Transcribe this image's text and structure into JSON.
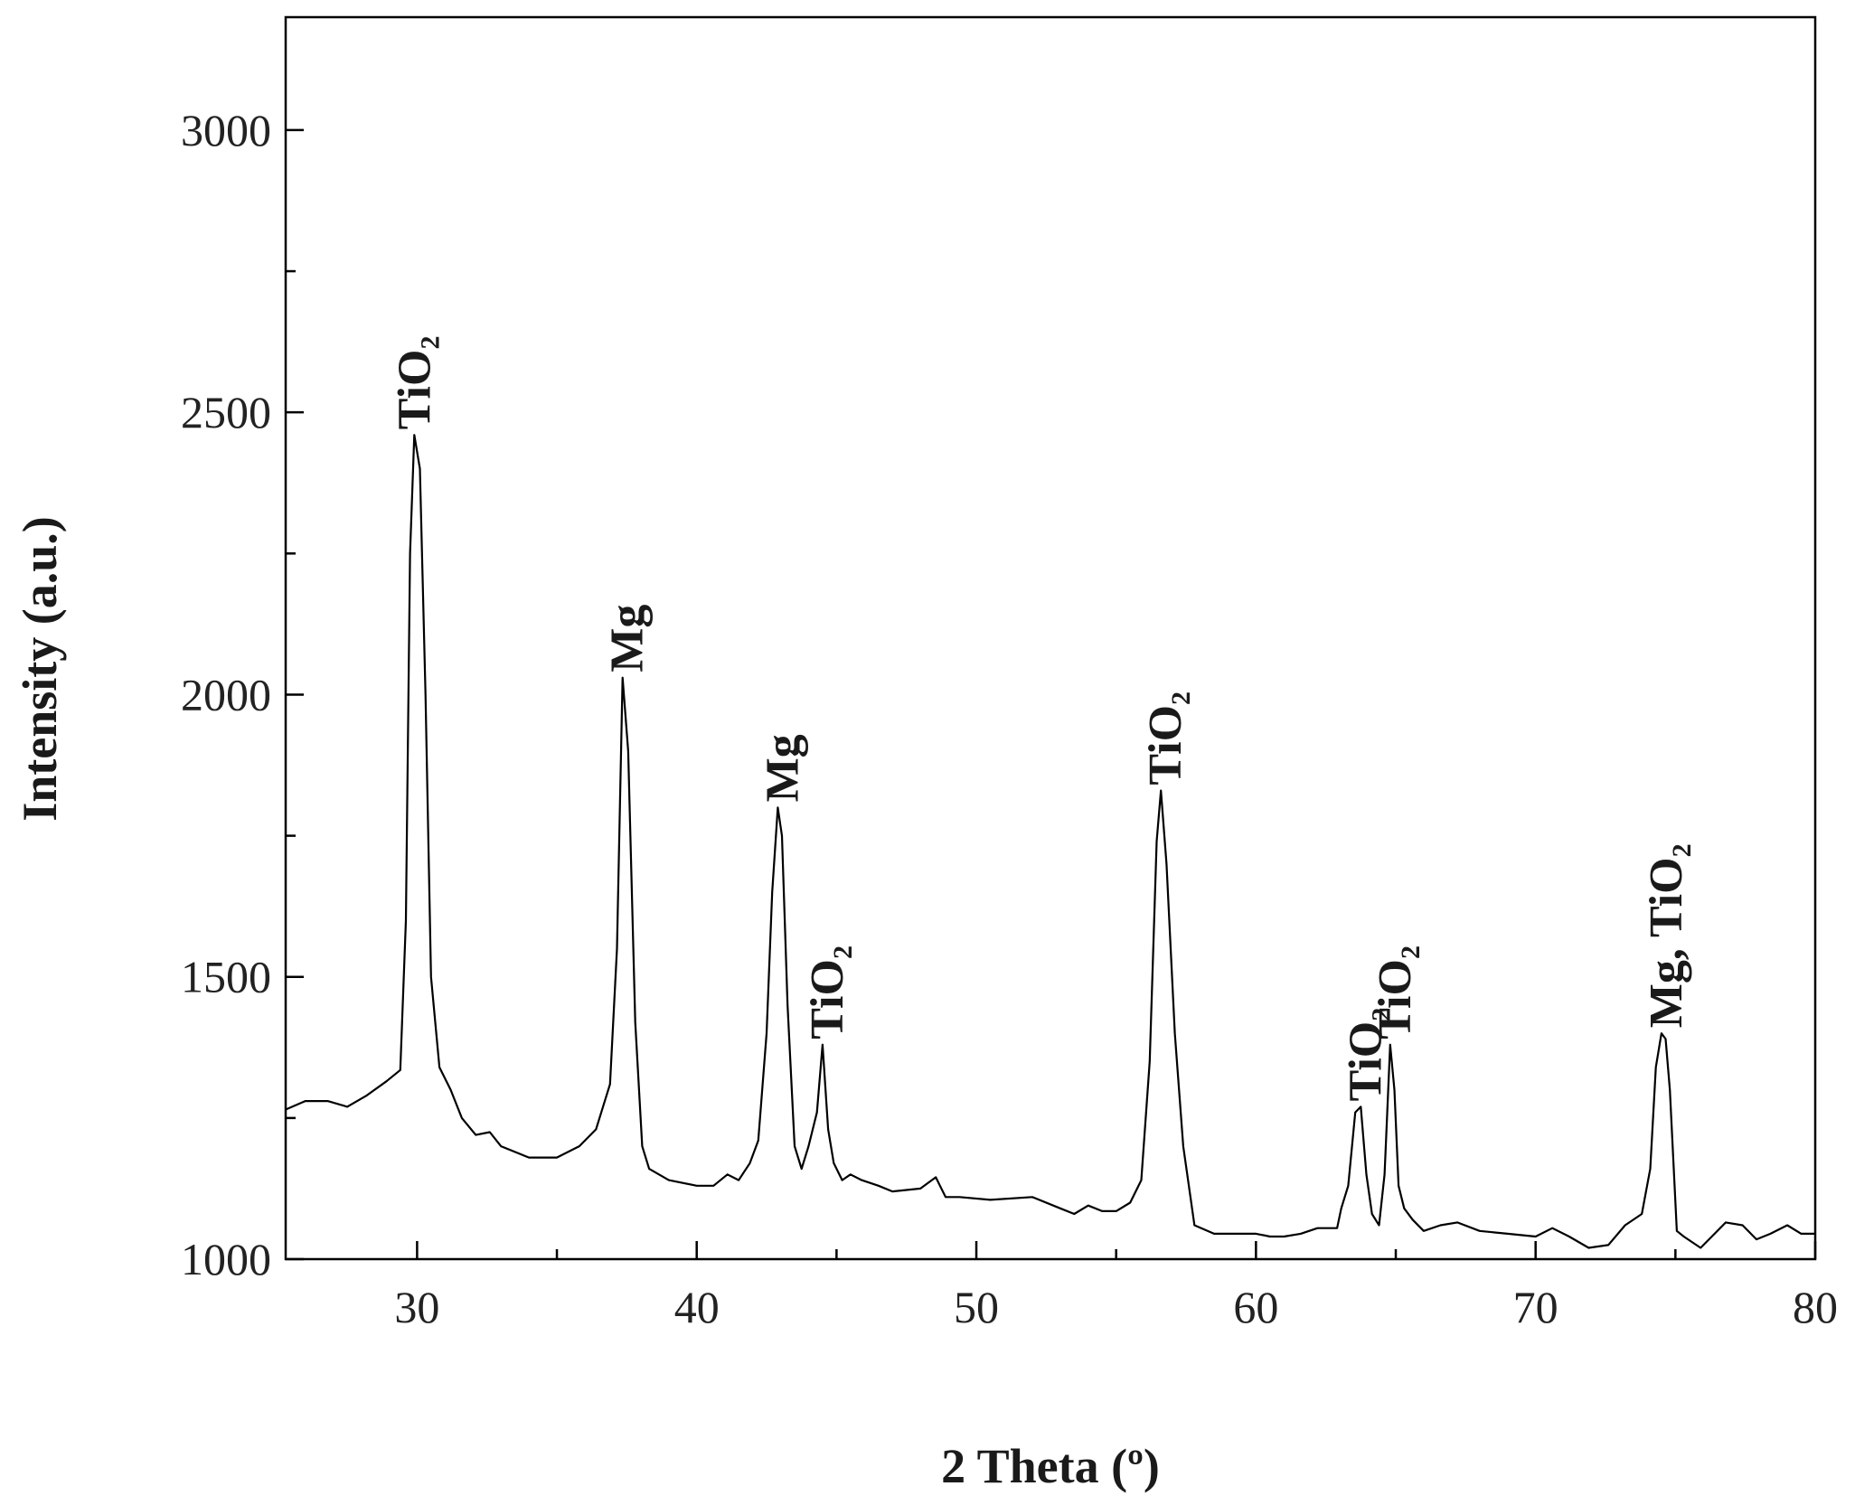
{
  "chart_data": {
    "type": "line",
    "title": "",
    "xlabel": "2 Theta (º)",
    "ylabel": "Intensity (a.u.)",
    "xlim": [
      25.3,
      80
    ],
    "ylim": [
      1000,
      3200
    ],
    "xticks": [
      30,
      40,
      50,
      60,
      70,
      80
    ],
    "xticks_minor": [
      35,
      45,
      55,
      65,
      75
    ],
    "yticks": [
      1000,
      1500,
      2000,
      2500,
      3000
    ],
    "yticks_minor": [
      1250,
      1750,
      2250,
      2750
    ],
    "x_tick_labels": [
      "30",
      "40",
      "50",
      "60",
      "70",
      "80"
    ],
    "y_tick_labels": [
      "1000",
      "1500",
      "2000",
      "2500",
      "3000"
    ],
    "grid": false,
    "legend": "none",
    "line_color": "#000000",
    "series": [
      {
        "x": [
          25.3,
          26.0,
          26.8,
          27.5,
          28.2,
          28.9,
          29.4,
          29.6,
          29.75,
          29.9,
          30.1,
          30.3,
          30.5,
          30.8,
          31.2,
          31.6,
          32.1,
          32.6,
          33.0,
          34.0,
          35.0,
          35.8,
          36.4,
          36.9,
          37.15,
          37.35,
          37.55,
          37.8,
          38.05,
          38.3,
          39.0,
          40.0,
          40.6,
          41.1,
          41.5,
          41.9,
          42.2,
          42.5,
          42.7,
          42.9,
          43.05,
          43.25,
          43.5,
          43.75,
          44.0,
          44.3,
          44.5,
          44.7,
          44.9,
          45.2,
          45.5,
          45.9,
          46.5,
          47.0,
          48.0,
          48.55,
          48.7,
          48.9,
          49.4,
          50.5,
          52.0,
          53.0,
          53.5,
          54.0,
          54.5,
          55.0,
          55.5,
          55.9,
          56.2,
          56.45,
          56.6,
          56.8,
          57.1,
          57.4,
          57.8,
          58.5,
          60.0,
          60.5,
          61.0,
          61.6,
          62.2,
          62.9,
          63.05,
          63.3,
          63.55,
          63.75,
          63.95,
          64.15,
          64.4,
          64.6,
          64.8,
          64.95,
          65.1,
          65.3,
          65.6,
          66.0,
          66.6,
          67.2,
          68.0,
          69.0,
          70.0,
          70.6,
          71.2,
          71.9,
          72.6,
          73.2,
          73.8,
          74.1,
          74.3,
          74.5,
          74.65,
          74.8,
          75.05,
          75.3,
          75.9,
          76.3,
          76.8,
          77.4,
          77.9,
          78.4,
          79.0,
          79.5,
          80.0
        ],
        "y": [
          1265,
          1280,
          1280,
          1270,
          1290,
          1315,
          1335,
          1600,
          2250,
          2460,
          2400,
          2000,
          1500,
          1340,
          1300,
          1250,
          1220,
          1225,
          1200,
          1180,
          1180,
          1200,
          1230,
          1310,
          1550,
          2030,
          1900,
          1420,
          1200,
          1160,
          1140,
          1130,
          1130,
          1150,
          1140,
          1170,
          1210,
          1400,
          1650,
          1800,
          1750,
          1450,
          1200,
          1160,
          1200,
          1260,
          1380,
          1230,
          1170,
          1140,
          1150,
          1140,
          1130,
          1120,
          1125,
          1145,
          1130,
          1110,
          1110,
          1105,
          1110,
          1090,
          1080,
          1095,
          1085,
          1085,
          1100,
          1140,
          1350,
          1740,
          1830,
          1700,
          1400,
          1200,
          1060,
          1045,
          1045,
          1040,
          1040,
          1045,
          1055,
          1055,
          1090,
          1130,
          1260,
          1270,
          1150,
          1080,
          1060,
          1150,
          1380,
          1300,
          1130,
          1090,
          1070,
          1050,
          1060,
          1065,
          1050,
          1045,
          1040,
          1055,
          1040,
          1020,
          1025,
          1060,
          1080,
          1160,
          1340,
          1400,
          1390,
          1300,
          1050,
          1040,
          1020,
          1040,
          1065,
          1060,
          1035,
          1045,
          1060,
          1045,
          1045
        ]
      }
    ],
    "annotations": [
      {
        "text": "TiO",
        "sub": "2",
        "x": 29.75,
        "y": 2460
      },
      {
        "text": "Mg",
        "sub": "",
        "x": 37.35,
        "y": 2030
      },
      {
        "text": "Mg",
        "sub": "",
        "x": 42.9,
        "y": 1800
      },
      {
        "text": "TiO",
        "sub": "2",
        "x": 44.5,
        "y": 1380
      },
      {
        "text": "TiO",
        "sub": "2",
        "x": 56.6,
        "y": 1830
      },
      {
        "text": "TiO",
        "sub": "2",
        "x": 63.75,
        "y": 1270
      },
      {
        "text": "TiO",
        "sub": "2",
        "x": 64.8,
        "y": 1380
      },
      {
        "text": "Mg, TiO",
        "sub": "2",
        "x": 74.5,
        "y": 1400
      }
    ]
  }
}
